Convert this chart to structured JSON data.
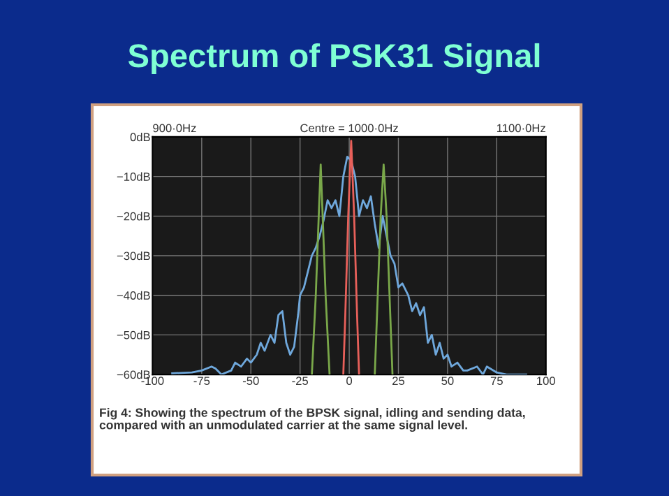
{
  "chart_data": {
    "type": "line",
    "title": "Spectrum of PSK31 Signal",
    "annotations": [
      "900·0Hz",
      "Centre = 1000·0Hz",
      "1100·0Hz",
      "Fig 4: Showing the spectrum of the BPSK signal, idling and sending data,\ncompared with an unmodulated carrier at the same signal level."
    ],
    "xlim": [
      -100,
      100
    ],
    "xticks": [
      -100,
      -75,
      -50,
      -25,
      0,
      25,
      50,
      75,
      100
    ],
    "ylim": [
      -60,
      0
    ],
    "yticks": [
      {
        "value": 0,
        "label": "0dB"
      },
      {
        "value": -10,
        "label": "−10dB"
      },
      {
        "value": -20,
        "label": "−20dB"
      },
      {
        "value": -30,
        "label": "−30dB"
      },
      {
        "value": -40,
        "label": "−40dB"
      },
      {
        "value": -50,
        "label": "−50dB"
      },
      {
        "value": -60,
        "label": "−60dB"
      }
    ],
    "grid": true,
    "series": [
      {
        "color": "#6fa8dc",
        "x": [
          -90,
          -80,
          -75,
          -70,
          -68,
          -65,
          -60,
          -58,
          -55,
          -52,
          -50,
          -47,
          -45,
          -43,
          -40,
          -38,
          -36,
          -34,
          -32,
          -30,
          -28,
          -26,
          -25,
          -23,
          -21,
          -19,
          -17,
          -15,
          -13,
          -11,
          -9,
          -7,
          -5,
          -3,
          -1,
          1,
          3,
          5,
          7,
          9,
          11,
          13,
          15,
          17,
          19,
          21,
          23,
          25,
          27,
          30,
          32,
          34,
          36,
          38,
          40,
          42,
          44,
          46,
          48,
          50,
          52,
          55,
          58,
          60,
          65,
          68,
          70,
          75,
          80,
          90
        ],
        "values": [
          -59.7,
          -59.5,
          -59,
          -58,
          -58.5,
          -60,
          -59,
          -57,
          -58,
          -56,
          -57,
          -55,
          -52,
          -54,
          -50,
          -52,
          -45,
          -44,
          -52,
          -55,
          -53,
          -45,
          -40,
          -38,
          -34,
          -30,
          -28,
          -25,
          -21,
          -16,
          -18,
          -16,
          -20,
          -10,
          -5,
          -6,
          -10,
          -20,
          -16,
          -18,
          -15,
          -22,
          -28,
          -20,
          -25,
          -30,
          -32,
          -38,
          -37,
          -40,
          -44,
          -42,
          -45,
          -43,
          -52,
          -50,
          -55,
          -52,
          -56,
          -55,
          -58,
          -57,
          -59,
          -59,
          -58,
          -60,
          -58,
          -59.5,
          -60,
          -60
        ]
      },
      {
        "color": "#7aa84a",
        "x": [
          -19,
          -17,
          -15.5,
          -14.5,
          -13.5,
          -12,
          -10,
          0,
          13,
          14.5,
          16,
          17.5,
          19,
          20.5,
          22
        ],
        "values": [
          -60,
          -40,
          -20,
          -7,
          -20,
          -40,
          -60,
          null,
          -60,
          -40,
          -20,
          -7,
          -20,
          -40,
          -60
        ]
      },
      {
        "color": "#e8605a",
        "x": [
          -3,
          -2,
          -0.5,
          1,
          2.5,
          4,
          5
        ],
        "values": [
          -60,
          -45,
          -20,
          -1,
          -20,
          -45,
          -60
        ]
      }
    ]
  }
}
